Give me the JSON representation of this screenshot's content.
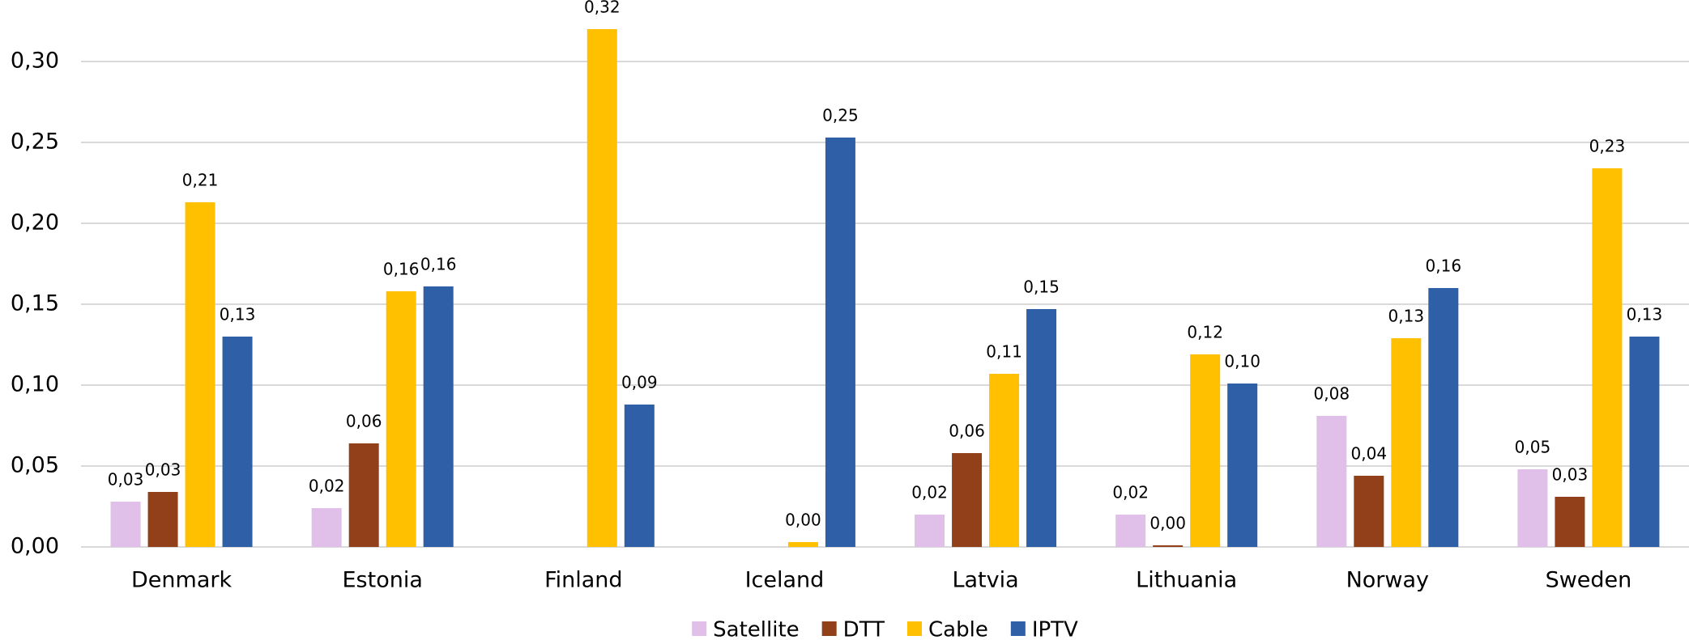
{
  "chart_data": {
    "type": "bar",
    "categories": [
      "Denmark",
      "Estonia",
      "Finland",
      "Iceland",
      "Latvia",
      "Lithuania",
      "Norway",
      "Sweden"
    ],
    "series": [
      {
        "name": "Satellite",
        "color": "#e0bfe8",
        "values": [
          0.028,
          0.024,
          null,
          null,
          0.02,
          0.02,
          0.081,
          0.048
        ],
        "value_labels": [
          "0,03",
          "0,02",
          null,
          null,
          "0,02",
          "0,02",
          "0,08",
          "0,05"
        ]
      },
      {
        "name": "DTT",
        "color": "#91401a",
        "values": [
          0.034,
          0.064,
          null,
          null,
          0.058,
          0.001,
          0.044,
          0.031
        ],
        "value_labels": [
          "0,03",
          "0,06",
          null,
          null,
          "0,06",
          "0,00",
          "0,04",
          "0,03"
        ]
      },
      {
        "name": "Cable",
        "color": "#ffc000",
        "values": [
          0.213,
          0.158,
          0.32,
          0.003,
          0.107,
          0.119,
          0.129,
          0.234
        ],
        "value_labels": [
          "0,21",
          "0,16",
          "0,32",
          "0,00",
          "0,11",
          "0,12",
          "0,13",
          "0,23"
        ]
      },
      {
        "name": "IPTV",
        "color": "#2f5fa7",
        "values": [
          0.13,
          0.161,
          0.088,
          0.253,
          0.147,
          0.101,
          0.16,
          0.13
        ],
        "value_labels": [
          "0,13",
          "0,16",
          "0,09",
          "0,25",
          "0,15",
          "0,10",
          "0,16",
          "0,13"
        ]
      }
    ],
    "ylim": [
      0,
      0.33
    ],
    "yticks": [
      {
        "value": 0,
        "label": "0,00"
      },
      {
        "value": 0.05,
        "label": "0,05"
      },
      {
        "value": 0.1,
        "label": "0,10"
      },
      {
        "value": 0.15,
        "label": "0,15"
      },
      {
        "value": 0.2,
        "label": "0,20"
      },
      {
        "value": 0.25,
        "label": "0,25"
      },
      {
        "value": 0.3,
        "label": "0,30"
      }
    ],
    "grid": true,
    "legend": "bottom"
  }
}
